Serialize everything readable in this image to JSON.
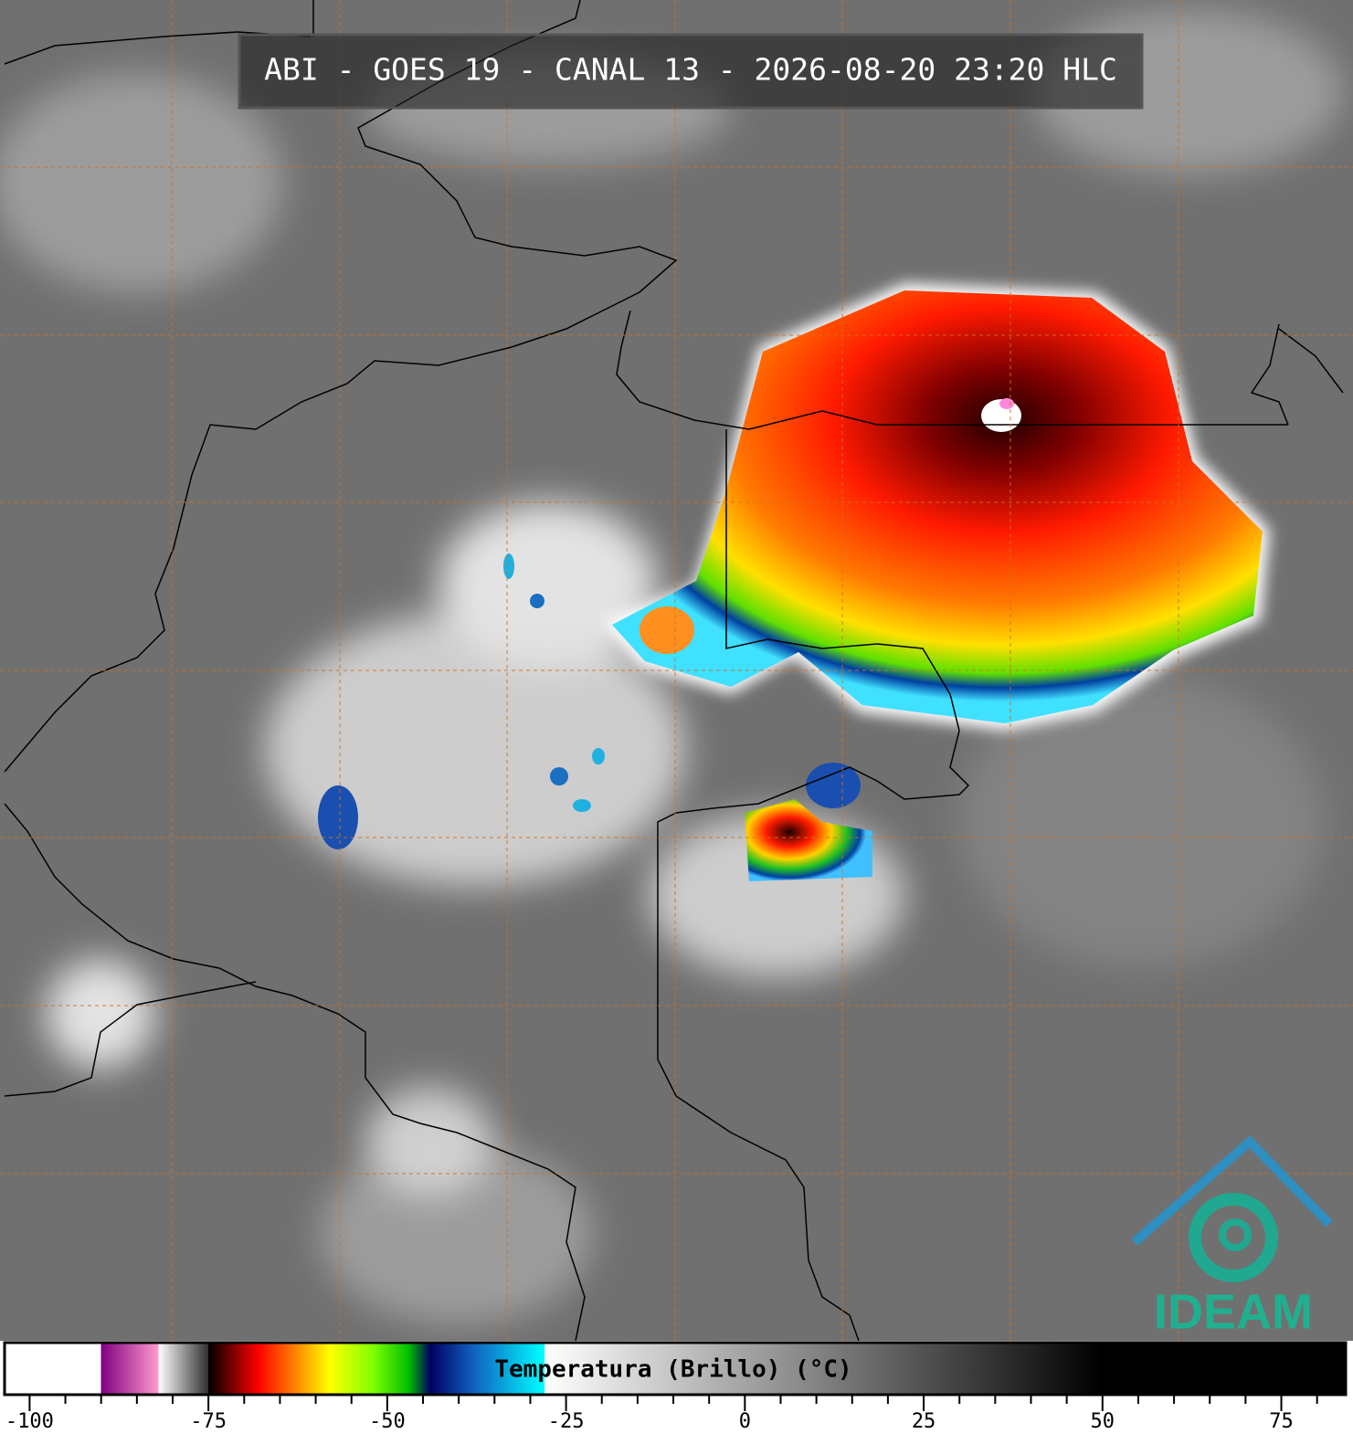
{
  "header": {
    "title": "ABI - GOES 19 - CANAL 13 - 2026-08-20 23:20 HLC"
  },
  "colorbar": {
    "label": "Temperatura (Brillo) (°C)",
    "range": [
      -103.5,
      84
    ],
    "ticks": [
      -100,
      -75,
      -50,
      -25,
      0,
      25,
      50,
      75
    ],
    "minor_ticks": [
      -95,
      -90,
      -85,
      -80,
      -70,
      -65,
      -60,
      -55,
      -45,
      -40,
      -35,
      -30,
      -20,
      -15,
      -10,
      -5,
      5,
      10,
      15,
      20,
      30,
      35,
      40,
      45,
      55,
      60,
      65,
      70,
      80
    ],
    "stops": [
      [
        -90,
        "#ffffff"
      ],
      [
        -90,
        "#800080"
      ],
      [
        -82,
        "#ff99cc"
      ],
      [
        -82,
        "#ffffff"
      ],
      [
        -75,
        "#303030"
      ],
      [
        -75,
        "#000000"
      ],
      [
        -68,
        "#ff0000"
      ],
      [
        -63,
        "#ff8000"
      ],
      [
        -58,
        "#ffff00"
      ],
      [
        -52,
        "#80ff00"
      ],
      [
        -47,
        "#00c000"
      ],
      [
        -44,
        "#000060"
      ],
      [
        -38,
        "#1060c0"
      ],
      [
        -28,
        "#00ffff"
      ],
      [
        -28,
        "#ffffff"
      ],
      [
        50,
        "#000000"
      ]
    ]
  },
  "logo": {
    "text": "IDEAM"
  }
}
